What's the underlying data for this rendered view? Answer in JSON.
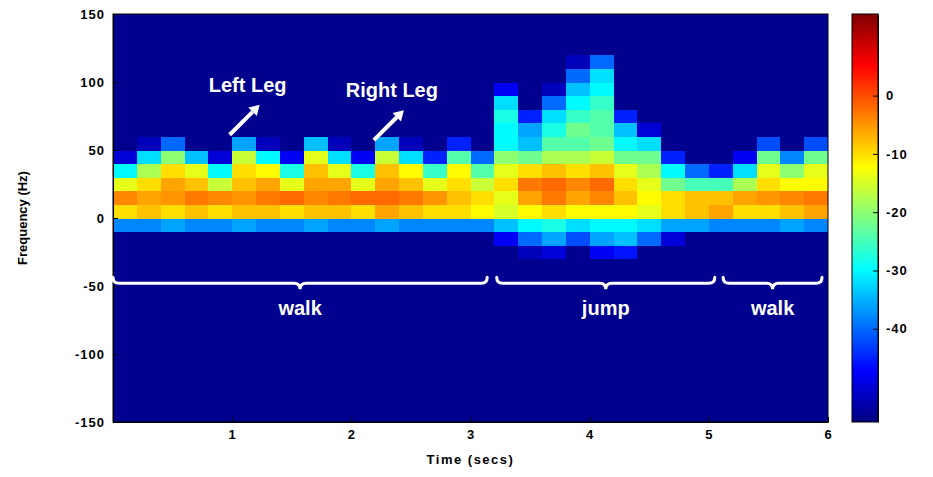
{
  "chart_data": {
    "type": "heatmap",
    "xlabel": "Time (secs)",
    "ylabel": "Frequency (Hz)",
    "xlim": [
      0,
      6
    ],
    "ylim": [
      -150,
      150
    ],
    "xticks": [
      1,
      2,
      3,
      4,
      5,
      6
    ],
    "yticks": [
      -150,
      -100,
      -50,
      0,
      50,
      100,
      150
    ],
    "color": "jet",
    "color_range": [
      -56,
      14
    ],
    "color_ticks": [
      0,
      -10,
      -20,
      -30,
      -40
    ],
    "x": [
      0.1,
      0.3,
      0.5,
      0.7,
      0.9,
      1.1,
      1.3,
      1.5,
      1.7,
      1.9,
      2.1,
      2.3,
      2.5,
      2.7,
      2.9,
      3.1,
      3.3,
      3.5,
      3.7,
      3.9,
      4.1,
      4.3,
      4.5,
      4.7,
      4.9,
      5.1,
      5.3,
      5.5,
      5.7,
      5.9
    ],
    "y": [
      -145,
      -135,
      -125,
      -115,
      -105,
      -95,
      -85,
      -75,
      -65,
      -55,
      -45,
      -35,
      -25,
      -15,
      -5,
      5,
      15,
      25,
      35,
      45,
      55,
      65,
      75,
      85,
      95,
      105,
      115,
      125,
      135,
      145
    ],
    "z": [
      [
        -55,
        -55,
        -55,
        -55,
        -55,
        -55,
        -55,
        -55,
        -55,
        -55,
        -55,
        -55,
        -55,
        -55,
        -55,
        -55,
        -55,
        -55,
        -55,
        -55,
        -55,
        -55,
        -55,
        -55,
        -55,
        -55,
        -55,
        -55,
        -55,
        -55
      ],
      [
        -55,
        -55,
        -55,
        -55,
        -55,
        -55,
        -55,
        -55,
        -55,
        -55,
        -55,
        -55,
        -55,
        -55,
        -55,
        -55,
        -55,
        -55,
        -55,
        -55,
        -55,
        -55,
        -55,
        -55,
        -55,
        -55,
        -55,
        -55,
        -55,
        -55
      ],
      [
        -55,
        -55,
        -55,
        -55,
        -55,
        -55,
        -55,
        -55,
        -55,
        -55,
        -55,
        -55,
        -55,
        -55,
        -55,
        -55,
        -55,
        -55,
        -55,
        -55,
        -55,
        -55,
        -55,
        -55,
        -55,
        -55,
        -55,
        -55,
        -55,
        -55
      ],
      [
        -55,
        -55,
        -55,
        -55,
        -55,
        -55,
        -55,
        -55,
        -55,
        -55,
        -55,
        -55,
        -55,
        -55,
        -55,
        -55,
        -55,
        -55,
        -55,
        -55,
        -55,
        -55,
        -55,
        -55,
        -55,
        -55,
        -55,
        -55,
        -55,
        -55
      ],
      [
        -55,
        -55,
        -55,
        -55,
        -55,
        -55,
        -55,
        -55,
        -55,
        -55,
        -55,
        -55,
        -55,
        -55,
        -55,
        -55,
        -55,
        -55,
        -55,
        -55,
        -55,
        -55,
        -55,
        -55,
        -55,
        -55,
        -55,
        -55,
        -55,
        -55
      ],
      [
        -55,
        -55,
        -55,
        -55,
        -55,
        -55,
        -55,
        -55,
        -55,
        -55,
        -55,
        -55,
        -55,
        -55,
        -55,
        -55,
        -55,
        -55,
        -55,
        -55,
        -55,
        -55,
        -55,
        -55,
        -55,
        -55,
        -55,
        -55,
        -55,
        -55
      ],
      [
        -55,
        -55,
        -55,
        -55,
        -55,
        -55,
        -55,
        -55,
        -55,
        -55,
        -55,
        -55,
        -55,
        -55,
        -55,
        -55,
        -55,
        -55,
        -55,
        -55,
        -55,
        -55,
        -55,
        -55,
        -55,
        -55,
        -55,
        -55,
        -55,
        -55
      ],
      [
        -55,
        -55,
        -55,
        -55,
        -55,
        -55,
        -55,
        -55,
        -55,
        -55,
        -55,
        -55,
        -55,
        -55,
        -55,
        -55,
        -55,
        -55,
        -55,
        -55,
        -55,
        -55,
        -55,
        -55,
        -55,
        -55,
        -55,
        -55,
        -55,
        -55
      ],
      [
        -55,
        -55,
        -55,
        -55,
        -55,
        -55,
        -55,
        -55,
        -55,
        -55,
        -55,
        -55,
        -55,
        -55,
        -55,
        -55,
        -55,
        -55,
        -55,
        -55,
        -55,
        -55,
        -55,
        -55,
        -55,
        -55,
        -55,
        -55,
        -55,
        -55
      ],
      [
        -55,
        -55,
        -55,
        -55,
        -55,
        -55,
        -55,
        -55,
        -55,
        -55,
        -55,
        -55,
        -55,
        -55,
        -55,
        -55,
        -55,
        -55,
        -55,
        -55,
        -55,
        -55,
        -55,
        -55,
        -55,
        -55,
        -55,
        -55,
        -55,
        -55
      ],
      [
        -55,
        -55,
        -55,
        -55,
        -55,
        -55,
        -55,
        -55,
        -55,
        -55,
        -55,
        -55,
        -55,
        -55,
        -55,
        -55,
        -55,
        -55,
        -55,
        -55,
        -55,
        -55,
        -55,
        -55,
        -55,
        -55,
        -55,
        -55,
        -55,
        -55
      ],
      [
        -55,
        -55,
        -55,
        -55,
        -55,
        -55,
        -55,
        -55,
        -55,
        -55,
        -55,
        -55,
        -55,
        -55,
        -55,
        -55,
        -55,
        -55,
        -55,
        -55,
        -55,
        -55,
        -55,
        -55,
        -55,
        -55,
        -55,
        -55,
        -55,
        -55
      ],
      [
        -55,
        -55,
        -55,
        -55,
        -55,
        -55,
        -55,
        -55,
        -55,
        -55,
        -55,
        -55,
        -55,
        -55,
        -55,
        -55,
        -55,
        -52,
        -50,
        -55,
        -48,
        -46,
        -55,
        -55,
        -55,
        -55,
        -55,
        -55,
        -55,
        -55
      ],
      [
        -55,
        -55,
        -55,
        -55,
        -55,
        -55,
        -55,
        -55,
        -55,
        -55,
        -55,
        -55,
        -55,
        -55,
        -55,
        -55,
        -48,
        -40,
        -36,
        -42,
        -36,
        -34,
        -40,
        -50,
        -55,
        -55,
        -55,
        -55,
        -55,
        -55
      ],
      [
        -38,
        -38,
        -36,
        -38,
        -38,
        -36,
        -38,
        -38,
        -36,
        -38,
        -38,
        -36,
        -38,
        -38,
        -38,
        -38,
        -34,
        -30,
        -28,
        -32,
        -30,
        -30,
        -32,
        -36,
        -36,
        -38,
        -38,
        -38,
        -36,
        -38
      ],
      [
        -10,
        -8,
        -10,
        -8,
        -10,
        -8,
        -8,
        -10,
        -8,
        -8,
        -10,
        -6,
        -8,
        -10,
        -10,
        -12,
        -15,
        -12,
        -10,
        -12,
        -12,
        -12,
        -14,
        -10,
        -8,
        -6,
        -10,
        -10,
        -8,
        -6
      ],
      [
        -4,
        -6,
        -5,
        -3,
        -4,
        -5,
        -3,
        -2,
        -4,
        -3,
        -2,
        -2,
        -3,
        -5,
        -8,
        -10,
        -14,
        -6,
        -3,
        -6,
        -4,
        -8,
        -12,
        -10,
        -8,
        -8,
        -6,
        -5,
        -4,
        -3
      ],
      [
        -14,
        -10,
        -6,
        -8,
        -16,
        -8,
        -6,
        -14,
        -6,
        -6,
        -14,
        -6,
        -8,
        -14,
        -10,
        -16,
        -10,
        -3,
        -2,
        -4,
        -2,
        -10,
        -14,
        -22,
        -25,
        -25,
        -18,
        -10,
        -12,
        -12
      ],
      [
        -30,
        -18,
        -10,
        -14,
        -30,
        -10,
        -12,
        -28,
        -8,
        -14,
        -28,
        -8,
        -12,
        -26,
        -12,
        -24,
        -14,
        -10,
        -8,
        -10,
        -8,
        -14,
        -18,
        -30,
        -40,
        -45,
        -32,
        -14,
        -20,
        -14
      ],
      [
        -50,
        -32,
        -20,
        -34,
        -50,
        -16,
        -30,
        -48,
        -14,
        -32,
        -48,
        -16,
        -32,
        -45,
        -24,
        -40,
        -20,
        -22,
        -18,
        -18,
        -16,
        -22,
        -22,
        -45,
        -55,
        -55,
        -48,
        -22,
        -38,
        -22
      ],
      [
        -55,
        -52,
        -40,
        -55,
        -55,
        -36,
        -52,
        -55,
        -34,
        -52,
        -55,
        -36,
        -52,
        -55,
        -45,
        -55,
        -30,
        -34,
        -24,
        -24,
        -22,
        -30,
        -32,
        -55,
        -55,
        -55,
        -55,
        -42,
        -55,
        -42
      ],
      [
        -55,
        -55,
        -55,
        -55,
        -55,
        -55,
        -55,
        -55,
        -55,
        -55,
        -55,
        -55,
        -55,
        -55,
        -55,
        -55,
        -30,
        -36,
        -28,
        -22,
        -24,
        -34,
        -50,
        -55,
        -55,
        -55,
        -55,
        -55,
        -55,
        -55
      ],
      [
        -55,
        -55,
        -55,
        -55,
        -55,
        -55,
        -55,
        -55,
        -55,
        -55,
        -55,
        -55,
        -55,
        -55,
        -55,
        -55,
        -28,
        -45,
        -32,
        -26,
        -24,
        -45,
        -55,
        -55,
        -55,
        -55,
        -55,
        -55,
        -55,
        -55
      ],
      [
        -55,
        -55,
        -55,
        -55,
        -55,
        -55,
        -55,
        -55,
        -55,
        -55,
        -55,
        -55,
        -55,
        -55,
        -55,
        -55,
        -32,
        -55,
        -40,
        -30,
        -26,
        -55,
        -55,
        -55,
        -55,
        -55,
        -55,
        -55,
        -55,
        -55
      ],
      [
        -55,
        -55,
        -55,
        -55,
        -55,
        -55,
        -55,
        -55,
        -55,
        -55,
        -55,
        -55,
        -55,
        -55,
        -55,
        -55,
        -48,
        -55,
        -52,
        -34,
        -30,
        -55,
        -55,
        -55,
        -55,
        -55,
        -55,
        -55,
        -55,
        -55
      ],
      [
        -55,
        -55,
        -55,
        -55,
        -55,
        -55,
        -55,
        -55,
        -55,
        -55,
        -55,
        -55,
        -55,
        -55,
        -55,
        -55,
        -55,
        -55,
        -55,
        -40,
        -32,
        -55,
        -55,
        -55,
        -55,
        -55,
        -55,
        -55,
        -55,
        -55
      ],
      [
        -55,
        -55,
        -55,
        -55,
        -55,
        -55,
        -55,
        -55,
        -55,
        -55,
        -55,
        -55,
        -55,
        -55,
        -55,
        -55,
        -55,
        -55,
        -55,
        -52,
        -40,
        -55,
        -55,
        -55,
        -55,
        -55,
        -55,
        -55,
        -55,
        -55
      ],
      [
        -55,
        -55,
        -55,
        -55,
        -55,
        -55,
        -55,
        -55,
        -55,
        -55,
        -55,
        -55,
        -55,
        -55,
        -55,
        -55,
        -55,
        -55,
        -55,
        -55,
        -55,
        -55,
        -55,
        -55,
        -55,
        -55,
        -55,
        -55,
        -55,
        -55
      ],
      [
        -55,
        -55,
        -55,
        -55,
        -55,
        -55,
        -55,
        -55,
        -55,
        -55,
        -55,
        -55,
        -55,
        -55,
        -55,
        -55,
        -55,
        -55,
        -55,
        -55,
        -55,
        -55,
        -55,
        -55,
        -55,
        -55,
        -55,
        -55,
        -55,
        -55
      ],
      [
        -55,
        -55,
        -55,
        -55,
        -55,
        -55,
        -55,
        -55,
        -55,
        -55,
        -55,
        -55,
        -55,
        -55,
        -55,
        -55,
        -55,
        -55,
        -55,
        -55,
        -55,
        -55,
        -55,
        -55,
        -55,
        -55,
        -55,
        -55,
        -55,
        -55
      ]
    ],
    "annotations": [
      {
        "text": "Left Leg",
        "x": 1.13,
        "y": 98
      },
      {
        "text": "Right Leg",
        "x": 2.34,
        "y": 94
      },
      {
        "text": "walk",
        "x": [
          0.0,
          3.14
        ],
        "y": -48
      },
      {
        "text": "jump",
        "x": [
          3.22,
          5.05
        ],
        "y": -48
      },
      {
        "text": "walk",
        "x": [
          5.12,
          5.95
        ],
        "y": -48
      }
    ]
  }
}
